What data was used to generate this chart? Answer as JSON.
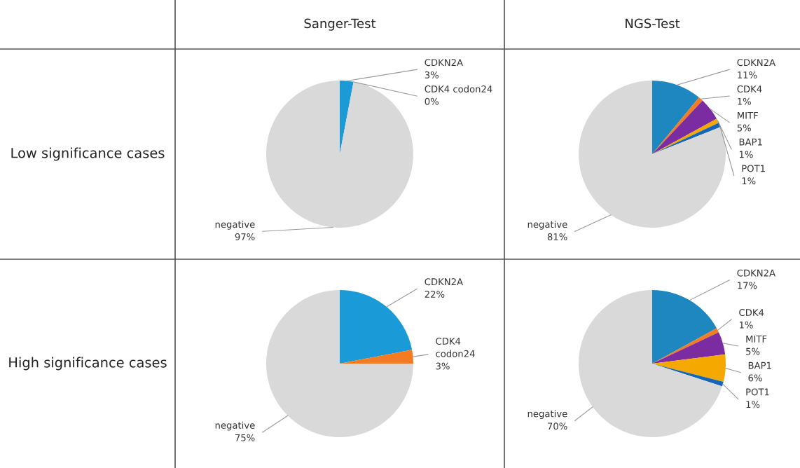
{
  "chart_data": [
    {
      "type": "pie",
      "title": "Sanger-Test",
      "ylabel": "Low significance cases",
      "categories": [
        "CDKN2A",
        "CDK4 codon24",
        "negative"
      ],
      "values": [
        3,
        0,
        97
      ],
      "value_labels": [
        "3%",
        "0%",
        "97%"
      ],
      "colors": [
        "#1a9ad6",
        "#f47b20",
        "#d9d9d9"
      ]
    },
    {
      "type": "pie",
      "title": "NGS-Test",
      "categories": [
        "CDKN2A",
        "CDK4",
        "MITF",
        "BAP1",
        "POT1",
        "negative"
      ],
      "values": [
        11,
        1,
        5,
        1,
        1,
        81
      ],
      "value_labels": [
        "11%",
        "1%",
        "5%",
        "1%",
        "1%",
        "81%"
      ],
      "colors": [
        "#1f87c0",
        "#f47b20",
        "#7a2ca0",
        "#f5a800",
        "#1566b8",
        "#d9d9d9"
      ]
    },
    {
      "type": "pie",
      "ylabel": "High significance cases",
      "categories": [
        "CDKN2A",
        "CDK4 codon24",
        "negative"
      ],
      "values": [
        22,
        3,
        75
      ],
      "value_labels": [
        "22%",
        "3%",
        "75%"
      ],
      "colors": [
        "#1a9ad6",
        "#f47b20",
        "#d9d9d9"
      ]
    },
    {
      "type": "pie",
      "categories": [
        "CDKN2A",
        "CDK4",
        "MITF",
        "BAP1",
        "POT1",
        "negative"
      ],
      "values": [
        17,
        1,
        5,
        6,
        1,
        70
      ],
      "value_labels": [
        "17%",
        "1%",
        "5%",
        "6%",
        "1%",
        "70%"
      ],
      "colors": [
        "#1f87c0",
        "#f47b20",
        "#7a2ca0",
        "#f5a800",
        "#1566b8",
        "#d9d9d9"
      ]
    }
  ]
}
